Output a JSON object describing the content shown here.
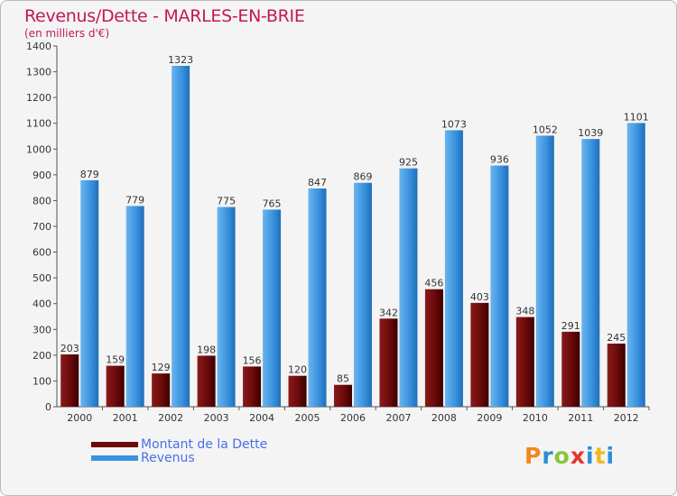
{
  "header": {
    "title": "Revenus/Dette - MARLES-EN-BRIE",
    "subtitle": "(en milliers d'€)"
  },
  "legend": {
    "items": [
      {
        "label": "Montant de la Dette",
        "color": "#6b0a0a"
      },
      {
        "label": "Revenus",
        "color": "#3b93df"
      }
    ]
  },
  "logo": {
    "text": "Proxiti",
    "letters": [
      "P",
      "r",
      "o",
      "x",
      "i",
      "t",
      "i"
    ],
    "colors": [
      "#ef8a1c",
      "#2a8fd6",
      "#8cc43a",
      "#e8332b",
      "#2a8fd6",
      "#f2b91d",
      "#2a8fd6"
    ]
  },
  "chart_data": {
    "type": "bar",
    "title": "Revenus/Dette - MARLES-EN-BRIE",
    "subtitle": "(en milliers d'€)",
    "categories": [
      "2000",
      "2001",
      "2002",
      "2003",
      "2004",
      "2005",
      "2006",
      "2007",
      "2008",
      "2009",
      "2010",
      "2011",
      "2012"
    ],
    "series": [
      {
        "name": "Montant de la Dette",
        "color": "#6b0a0a",
        "values": [
          203,
          159,
          129,
          198,
          156,
          120,
          85,
          342,
          456,
          403,
          348,
          291,
          245
        ]
      },
      {
        "name": "Revenus",
        "color": "#3b93df",
        "values": [
          879,
          779,
          1323,
          775,
          765,
          847,
          869,
          925,
          1073,
          936,
          1052,
          1039,
          1101
        ]
      }
    ],
    "ylim": [
      0,
      1400
    ],
    "yticks": [
      0,
      100,
      200,
      300,
      400,
      500,
      600,
      700,
      800,
      900,
      1000,
      1100,
      1200,
      1300,
      1400
    ],
    "grid": false,
    "legend_position": "bottom-left"
  }
}
